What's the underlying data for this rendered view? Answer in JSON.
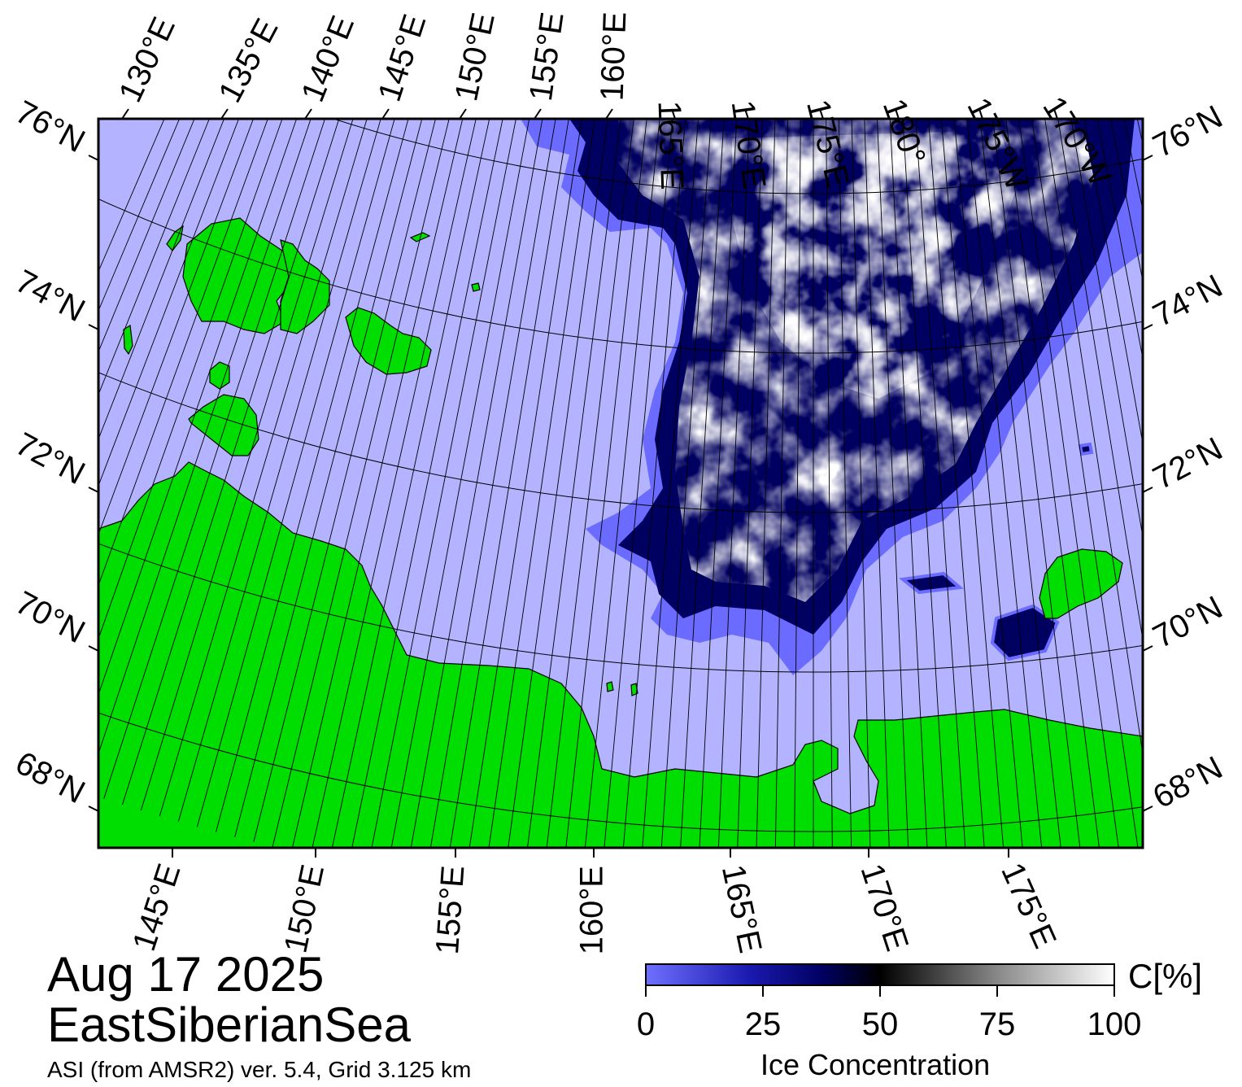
{
  "map": {
    "date": "Aug 17 2025",
    "region": "EastSiberianSea",
    "source": "ASI (from AMSR2) ver. 5.4,  Grid 3.125 km",
    "top_lon_labels": [
      "130°E",
      "135°E",
      "140°E",
      "145°E",
      "150°E",
      "155°E",
      "160°E",
      "165°E",
      "170°E",
      "175°E",
      "180°",
      "175°W",
      "170°W"
    ],
    "bottom_lon_labels": [
      "145°E",
      "150°E",
      "155°E",
      "160°E",
      "165°E",
      "170°E",
      "175°E"
    ],
    "left_lat_labels": [
      "76°N",
      "74°N",
      "72°N",
      "70°N",
      "68°N"
    ],
    "right_lat_labels": [
      "76°N",
      "74°N",
      "72°N",
      "70°N",
      "68°N"
    ],
    "colors": {
      "ocean": "#b3b3ff",
      "land": "#00dd00",
      "coast_fringe": "#888888",
      "ice_low": "#6b6bff",
      "ice_mid": "#000060",
      "ice_high": "#ffffff"
    }
  },
  "colorbar": {
    "title": "Ice Concentration",
    "unit": "C[%]",
    "ticks": [
      "0",
      "25",
      "50",
      "75",
      "100"
    ],
    "range": [
      0,
      100
    ]
  }
}
